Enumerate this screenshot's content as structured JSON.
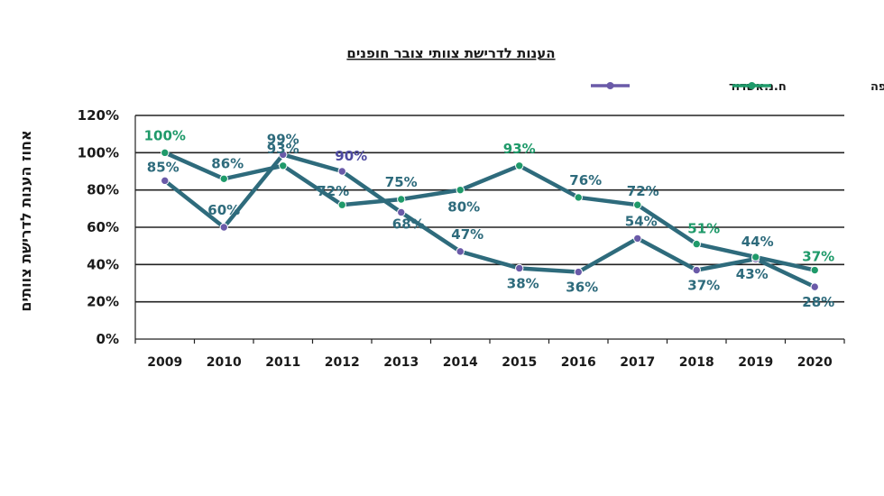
{
  "chart_data": {
    "type": "line",
    "title": "הענות לדרישת צוותי צובר חופנים",
    "ylabel": "אחוז הענות לדרישת צוותים",
    "xlabel": "",
    "categories": [
      "2009",
      "2010",
      "2011",
      "2012",
      "2013",
      "2014",
      "2015",
      "2016",
      "2017",
      "2018",
      "2019",
      "2020"
    ],
    "ylim": [
      0,
      120
    ],
    "yticks": [
      "0%",
      "20%",
      "40%",
      "60%",
      "80%",
      "100%",
      "120%"
    ],
    "grid": true,
    "legend_position": "top-right",
    "series": [
      {
        "name": "ח.נ.אשדוד",
        "color": "#2e6b7c",
        "marker_color": "#6a5aa8",
        "values": [
          85,
          60,
          99,
          90,
          68,
          47,
          38,
          36,
          54,
          37,
          43,
          28
        ],
        "labels": [
          "85%",
          "60%",
          "99%",
          "90%",
          "68%",
          "47%",
          "38%",
          "36%",
          "54%",
          "37%",
          "43%",
          "28%"
        ]
      },
      {
        "name": "ח.נ.חיפה",
        "color": "#2e6b7c",
        "marker_color": "#1f9a6a",
        "values": [
          100,
          86,
          93,
          72,
          75,
          80,
          93,
          76,
          72,
          51,
          44,
          37
        ],
        "labels": [
          "100%",
          "86%",
          "93%",
          "72%",
          "75%",
          "80%",
          "93%",
          "76%",
          "72%",
          "51%",
          "44%",
          "37%"
        ]
      }
    ]
  }
}
